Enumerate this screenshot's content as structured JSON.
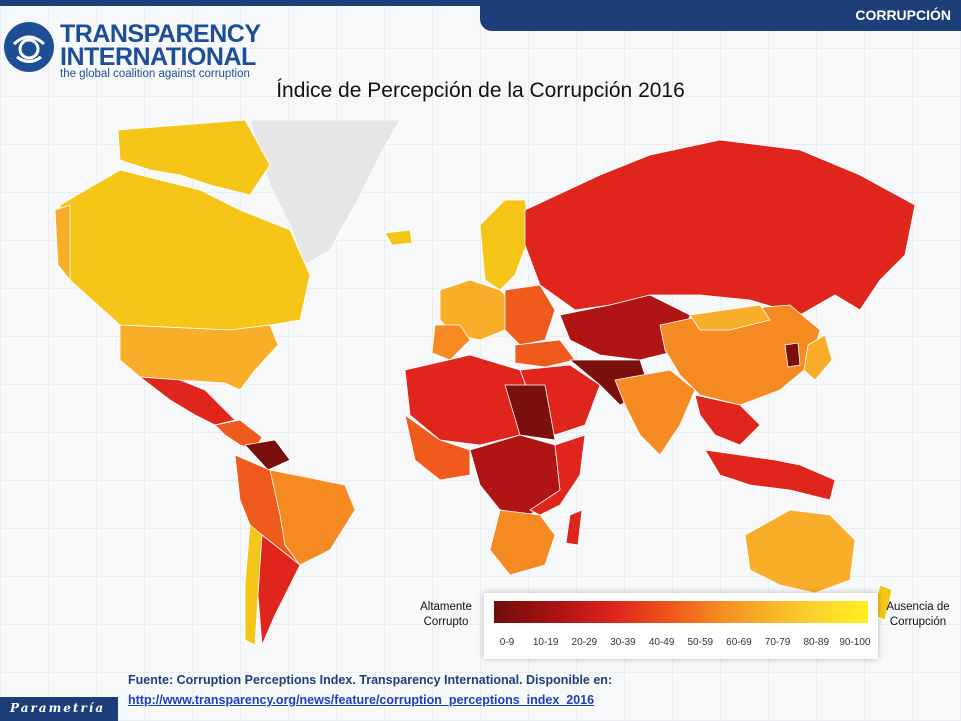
{
  "header": {
    "section_label": "CORRUPCIÓN",
    "logo_line1": "TRANSPARENCY",
    "logo_line2": "INTERNATIONAL",
    "logo_tagline": "the global coalition against corruption"
  },
  "title": "Índice de Percepción de la Corrupción 2016",
  "legend": {
    "left_label_line1": "Altamente",
    "left_label_line2": "Corrupto",
    "right_label_line1": "Ausencia de",
    "right_label_line2": "Corrupción",
    "ranges": [
      "0-9",
      "10-19",
      "20-29",
      "30-39",
      "40-49",
      "50-59",
      "60-69",
      "70-79",
      "80-89",
      "90-100"
    ],
    "colors": [
      "#6e0d0b",
      "#b01414",
      "#e0261c",
      "#ef5a1d",
      "#f58a22",
      "#f8ae28",
      "#fbd32c",
      "#fff01f"
    ]
  },
  "map_colors": {
    "no_data": "#e6e6e6",
    "very_high": "#f5c518",
    "high": "#f8ae28",
    "mid": "#f58a22",
    "mid_low": "#ef5a1d",
    "low": "#e0261c",
    "very_low": "#b01414",
    "lowest": "#7a0f0c",
    "border": "#ffffff"
  },
  "source": {
    "line1": "Fuente: Corruption Perceptions Index. Transparency International. Disponible en:",
    "link": "http://www.transparency.org/news/feature/corruption_perceptions_index_2016"
  },
  "footer": {
    "brand": "Parametría"
  }
}
